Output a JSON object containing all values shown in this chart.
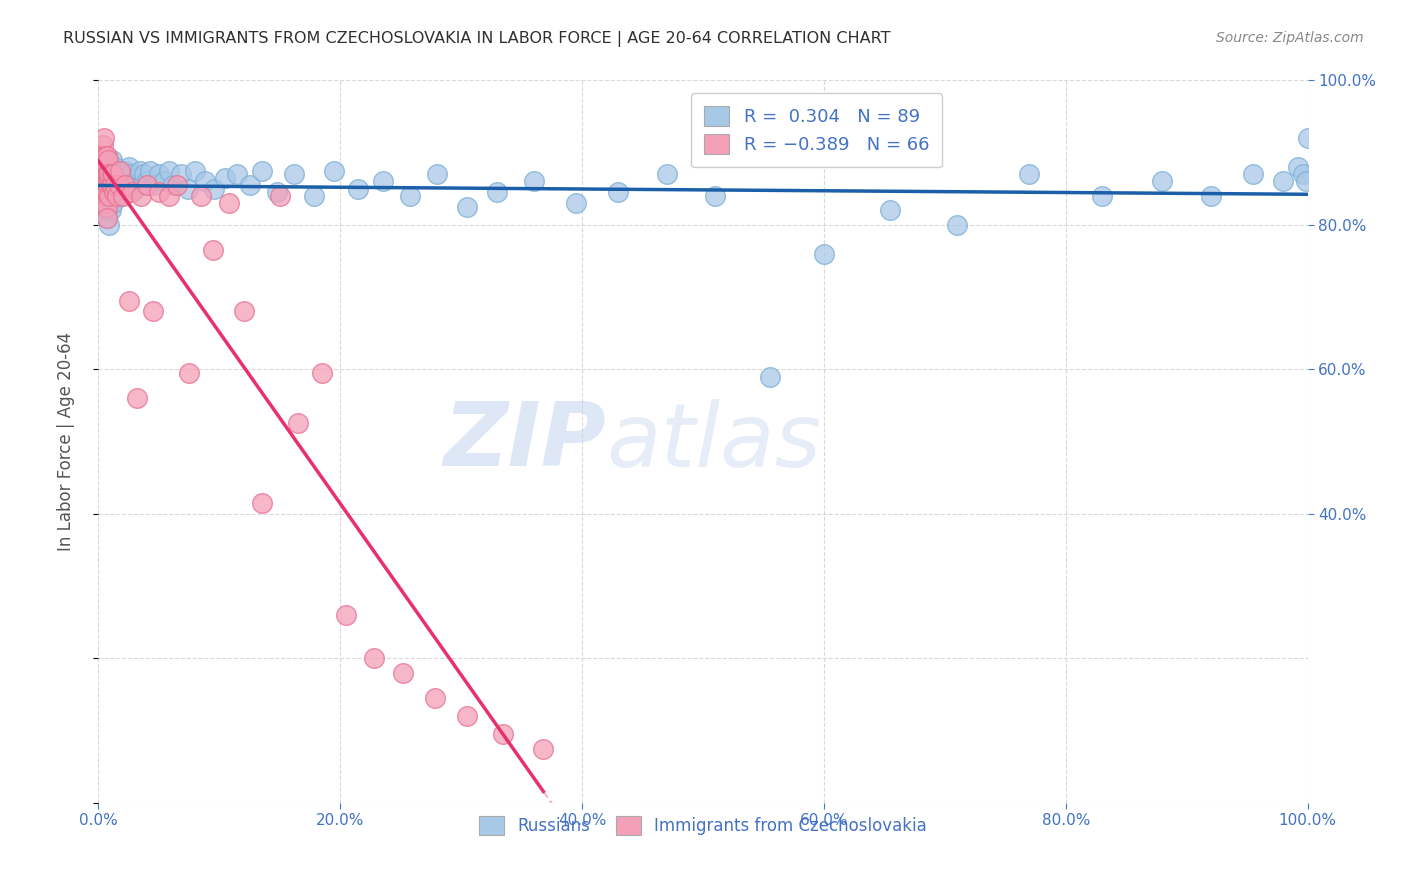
{
  "title": "RUSSIAN VS IMMIGRANTS FROM CZECHOSLOVAKIA IN LABOR FORCE | AGE 20-64 CORRELATION CHART",
  "source": "Source: ZipAtlas.com",
  "ylabel": "In Labor Force | Age 20-64",
  "watermark_zip": "ZIP",
  "watermark_atlas": "atlas",
  "blue_scatter_color": "#a8c8e8",
  "blue_scatter_edge": "#7bafd4",
  "pink_scatter_color": "#f4a0b8",
  "pink_scatter_edge": "#e87090",
  "blue_line_color": "#1a5fa8",
  "pink_line_color": "#e8306a",
  "pink_dash_color": "#e8a0b8",
  "axis_color": "#4472c4",
  "grid_color": "#d0d0d0",
  "title_color": "#303030",
  "source_color": "#888888",
  "legend_text_color": "#4472c4",
  "ylabel_color": "#555555",
  "russians_x": [
    0.005,
    0.005,
    0.005,
    0.006,
    0.006,
    0.007,
    0.007,
    0.007,
    0.008,
    0.008,
    0.008,
    0.009,
    0.009,
    0.009,
    0.01,
    0.01,
    0.01,
    0.011,
    0.011,
    0.011,
    0.012,
    0.012,
    0.013,
    0.013,
    0.014,
    0.014,
    0.015,
    0.015,
    0.016,
    0.017,
    0.018,
    0.019,
    0.02,
    0.022,
    0.023,
    0.024,
    0.025,
    0.027,
    0.028,
    0.03,
    0.032,
    0.034,
    0.036,
    0.038,
    0.04,
    0.043,
    0.046,
    0.05,
    0.054,
    0.058,
    0.062,
    0.068,
    0.074,
    0.08,
    0.088,
    0.096,
    0.105,
    0.115,
    0.125,
    0.135,
    0.148,
    0.162,
    0.178,
    0.195,
    0.215,
    0.235,
    0.258,
    0.28,
    0.305,
    0.33,
    0.36,
    0.395,
    0.43,
    0.47,
    0.51,
    0.555,
    0.6,
    0.655,
    0.71,
    0.77,
    0.83,
    0.88,
    0.92,
    0.955,
    0.98,
    0.992,
    0.996,
    0.999,
    1.0
  ],
  "russians_y": [
    0.88,
    0.86,
    0.82,
    0.85,
    0.83,
    0.87,
    0.84,
    0.81,
    0.88,
    0.86,
    0.82,
    0.85,
    0.83,
    0.8,
    0.88,
    0.86,
    0.82,
    0.89,
    0.87,
    0.84,
    0.85,
    0.83,
    0.87,
    0.845,
    0.88,
    0.855,
    0.875,
    0.845,
    0.86,
    0.85,
    0.87,
    0.84,
    0.855,
    0.875,
    0.865,
    0.85,
    0.88,
    0.87,
    0.855,
    0.85,
    0.865,
    0.875,
    0.855,
    0.87,
    0.86,
    0.875,
    0.855,
    0.87,
    0.86,
    0.875,
    0.855,
    0.87,
    0.85,
    0.875,
    0.86,
    0.85,
    0.865,
    0.87,
    0.855,
    0.875,
    0.845,
    0.87,
    0.84,
    0.875,
    0.85,
    0.86,
    0.84,
    0.87,
    0.825,
    0.845,
    0.86,
    0.83,
    0.845,
    0.87,
    0.84,
    0.59,
    0.76,
    0.82,
    0.8,
    0.87,
    0.84,
    0.86,
    0.84,
    0.87,
    0.86,
    0.88,
    0.87,
    0.86,
    0.92
  ],
  "czech_x": [
    0.003,
    0.003,
    0.004,
    0.004,
    0.004,
    0.005,
    0.005,
    0.005,
    0.005,
    0.005,
    0.005,
    0.006,
    0.006,
    0.006,
    0.006,
    0.006,
    0.006,
    0.007,
    0.007,
    0.007,
    0.007,
    0.007,
    0.007,
    0.007,
    0.008,
    0.008,
    0.008,
    0.009,
    0.009,
    0.009,
    0.01,
    0.011,
    0.011,
    0.012,
    0.013,
    0.014,
    0.015,
    0.017,
    0.018,
    0.02,
    0.022,
    0.025,
    0.028,
    0.032,
    0.035,
    0.04,
    0.045,
    0.05,
    0.058,
    0.065,
    0.075,
    0.085,
    0.095,
    0.108,
    0.12,
    0.135,
    0.15,
    0.165,
    0.185,
    0.205,
    0.228,
    0.252,
    0.278,
    0.305,
    0.335,
    0.368
  ],
  "czech_y": [
    0.87,
    0.895,
    0.86,
    0.88,
    0.91,
    0.85,
    0.87,
    0.895,
    0.92,
    0.875,
    0.84,
    0.855,
    0.875,
    0.895,
    0.865,
    0.845,
    0.83,
    0.86,
    0.88,
    0.895,
    0.87,
    0.845,
    0.825,
    0.81,
    0.855,
    0.87,
    0.89,
    0.86,
    0.84,
    0.87,
    0.855,
    0.87,
    0.855,
    0.87,
    0.845,
    0.855,
    0.84,
    0.855,
    0.875,
    0.84,
    0.855,
    0.695,
    0.845,
    0.56,
    0.84,
    0.855,
    0.68,
    0.845,
    0.84,
    0.855,
    0.595,
    0.84,
    0.765,
    0.83,
    0.68,
    0.415,
    0.84,
    0.525,
    0.595,
    0.26,
    0.2,
    0.18,
    0.145,
    0.12,
    0.095,
    0.075
  ],
  "xlim": [
    0.0,
    1.0
  ],
  "ylim": [
    0.0,
    1.0
  ],
  "right_yticks": [
    0.4,
    0.6,
    0.8,
    1.0
  ],
  "right_ytick_labels": [
    "40.0%",
    "60.0%",
    "80.0%",
    "100.0%"
  ],
  "xticks": [
    0.0,
    0.2,
    0.4,
    0.6,
    0.8,
    1.0
  ],
  "xtick_labels": [
    "0.0%",
    "20.0%",
    "40.0%",
    "60.0%",
    "80.0%",
    "100.0%"
  ]
}
